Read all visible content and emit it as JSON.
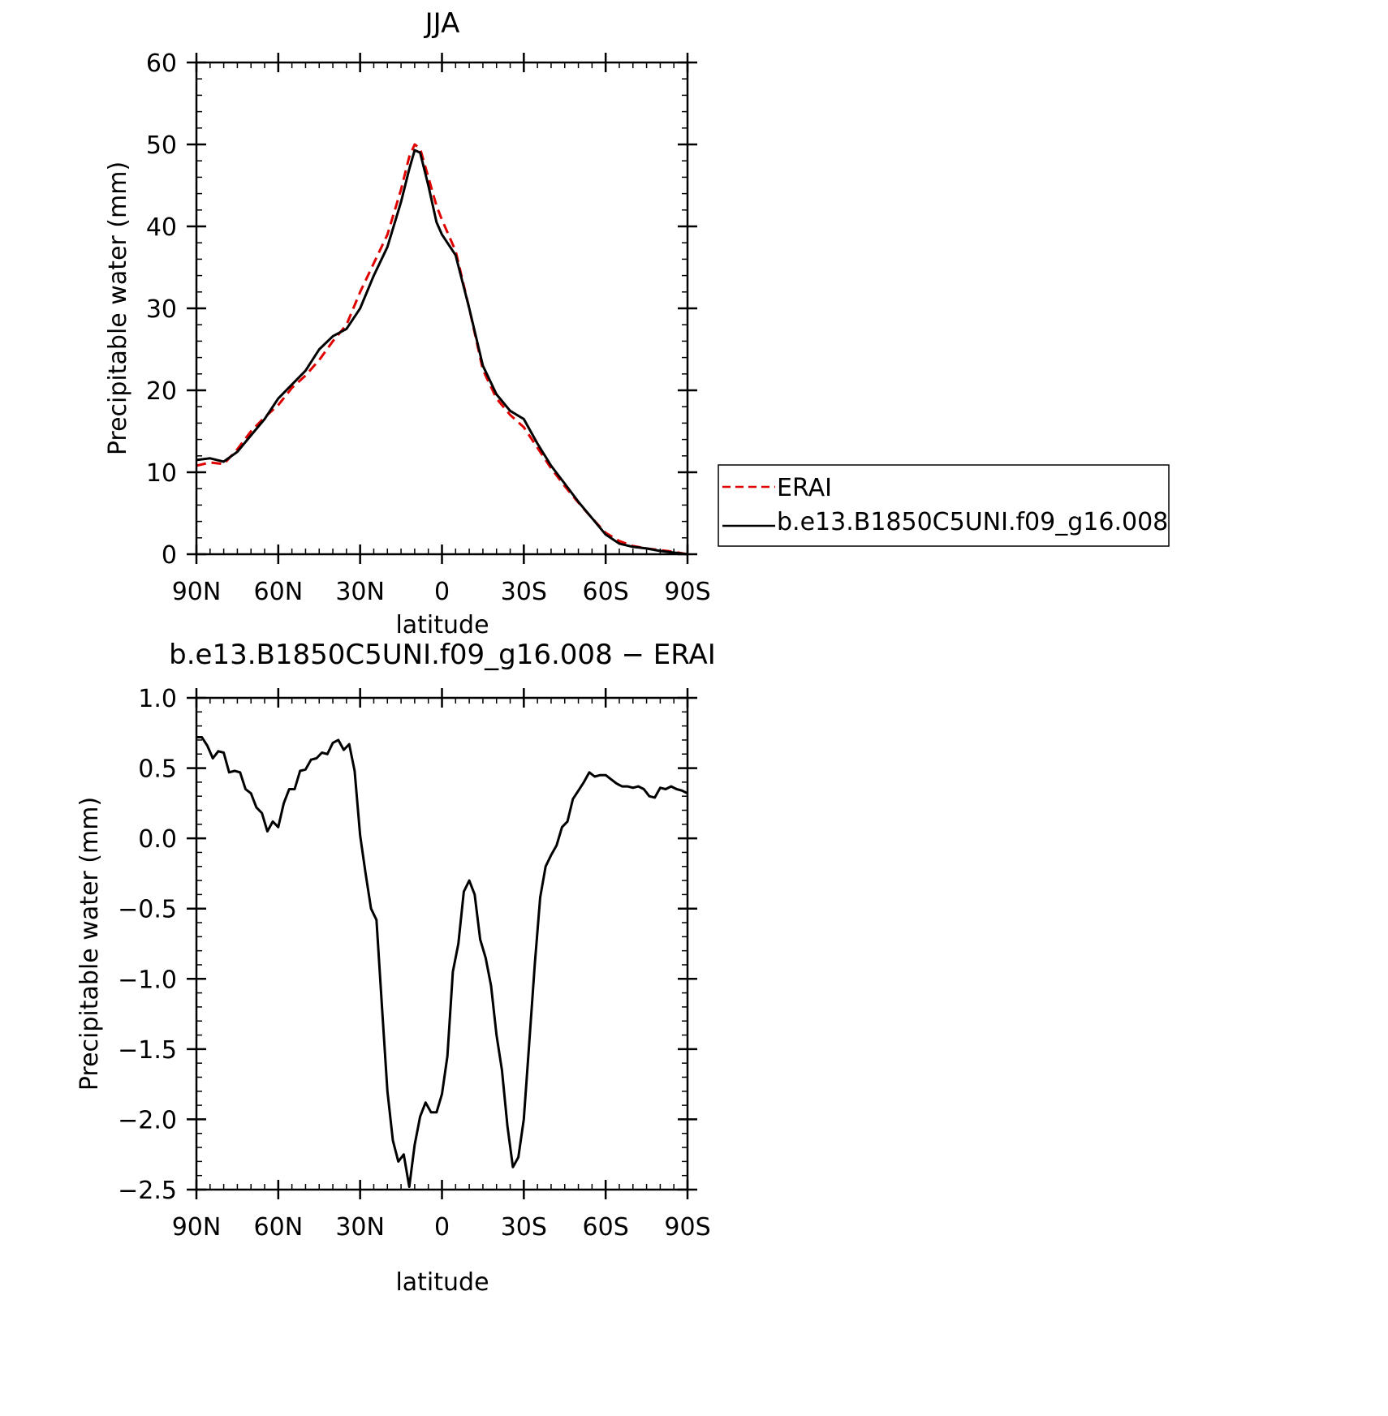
{
  "colors": {
    "series_erai": "#e00000",
    "series_model": "#000000",
    "axis": "#000000"
  },
  "chart_data": [
    {
      "type": "line",
      "title": "JJA",
      "xlabel": "latitude",
      "ylabel": "Precipitable water (mm)",
      "xlim": [
        90,
        -90
      ],
      "ylim": [
        0,
        60
      ],
      "x_ticks": [
        {
          "value": 90,
          "label": "90N"
        },
        {
          "value": 60,
          "label": "60N"
        },
        {
          "value": 30,
          "label": "30N"
        },
        {
          "value": 0,
          "label": "0"
        },
        {
          "value": -30,
          "label": "30S"
        },
        {
          "value": -60,
          "label": "60S"
        },
        {
          "value": -90,
          "label": "90S"
        }
      ],
      "y_ticks": [
        {
          "value": 0,
          "label": "0"
        },
        {
          "value": 10,
          "label": "10"
        },
        {
          "value": 20,
          "label": "20"
        },
        {
          "value": 30,
          "label": "30"
        },
        {
          "value": 40,
          "label": "40"
        },
        {
          "value": 50,
          "label": "50"
        },
        {
          "value": 60,
          "label": "60"
        }
      ],
      "legend": {
        "position": "right",
        "entries": [
          "ERAI",
          "b.e13.B1850C5UNI.f09_g16.008"
        ]
      },
      "series": [
        {
          "name": "ERAI",
          "color": "#e00000",
          "dash": "dashed",
          "x": [
            90,
            85,
            80,
            75,
            70,
            65,
            60,
            55,
            50,
            45,
            40,
            35,
            30,
            25,
            20,
            15,
            12,
            10,
            8,
            5,
            2,
            0,
            -5,
            -10,
            -15,
            -20,
            -25,
            -30,
            -35,
            -40,
            -45,
            -50,
            -55,
            -60,
            -65,
            -70,
            -75,
            -80,
            -85,
            -90
          ],
          "y": [
            10.8,
            11.2,
            11.0,
            12.8,
            15.0,
            16.7,
            18.2,
            20.3,
            21.8,
            23.7,
            26.0,
            28.0,
            32.0,
            35.5,
            39.0,
            44.5,
            48.5,
            50.0,
            49.5,
            46.0,
            42.5,
            40.8,
            37.0,
            30.0,
            22.5,
            19.0,
            17.0,
            15.5,
            13.0,
            10.5,
            8.3,
            6.3,
            4.4,
            2.6,
            1.6,
            1.0,
            0.7,
            0.5,
            0.3,
            0.0
          ]
        },
        {
          "name": "b.e13.B1850C5UNI.f09_g16.008",
          "color": "#000000",
          "dash": "solid",
          "x": [
            90,
            85,
            80,
            75,
            70,
            65,
            60,
            55,
            50,
            45,
            40,
            35,
            30,
            25,
            20,
            15,
            12,
            10,
            8,
            5,
            2,
            0,
            -5,
            -10,
            -15,
            -20,
            -25,
            -30,
            -35,
            -40,
            -45,
            -50,
            -55,
            -60,
            -65,
            -70,
            -75,
            -80,
            -85,
            -90
          ],
          "y": [
            11.5,
            11.7,
            11.3,
            12.5,
            14.5,
            16.5,
            19.0,
            20.7,
            22.4,
            25.0,
            26.6,
            27.5,
            30.0,
            34.0,
            37.5,
            43.0,
            47.0,
            49.3,
            49.0,
            45.0,
            40.5,
            39.0,
            36.5,
            30.0,
            23.0,
            19.5,
            17.5,
            16.5,
            13.5,
            10.8,
            8.6,
            6.4,
            4.4,
            2.4,
            1.3,
            0.9,
            0.7,
            0.4,
            0.2,
            0.0
          ]
        }
      ]
    },
    {
      "type": "line",
      "title": "b.e13.B1850C5UNI.f09_g16.008 − ERAI",
      "xlabel": "latitude",
      "ylabel": "Precipitable water (mm)",
      "xlim": [
        90,
        -90
      ],
      "ylim": [
        -2.5,
        1.0
      ],
      "x_ticks": [
        {
          "value": 90,
          "label": "90N"
        },
        {
          "value": 60,
          "label": "60N"
        },
        {
          "value": 30,
          "label": "30N"
        },
        {
          "value": 0,
          "label": "0"
        },
        {
          "value": -30,
          "label": "30S"
        },
        {
          "value": -60,
          "label": "60S"
        },
        {
          "value": -90,
          "label": "90S"
        }
      ],
      "y_ticks": [
        {
          "value": 1.0,
          "label": "1.0"
        },
        {
          "value": 0.5,
          "label": "0.5"
        },
        {
          "value": 0.0,
          "label": "0.0"
        },
        {
          "value": -0.5,
          "label": "−0.5"
        },
        {
          "value": -1.0,
          "label": "−1.0"
        },
        {
          "value": -1.5,
          "label": "−1.5"
        },
        {
          "value": -2.0,
          "label": "−2.0"
        },
        {
          "value": -2.5,
          "label": "−2.5"
        }
      ],
      "series": [
        {
          "color": "#000000",
          "dash": "solid",
          "x": [
            90,
            88,
            86,
            84,
            82,
            80,
            78,
            76,
            74,
            72,
            70,
            68,
            66,
            64,
            62,
            60,
            58,
            56,
            54,
            52,
            50,
            48,
            46,
            44,
            42,
            40,
            38,
            36,
            34,
            32,
            30,
            28,
            26,
            24,
            22,
            20,
            18,
            16,
            14,
            12,
            10,
            8,
            6,
            4,
            2,
            0,
            -2,
            -4,
            -6,
            -8,
            -10,
            -12,
            -14,
            -16,
            -18,
            -20,
            -22,
            -24,
            -26,
            -28,
            -30,
            -32,
            -34,
            -36,
            -38,
            -40,
            -42,
            -44,
            -46,
            -48,
            -50,
            -52,
            -54,
            -56,
            -58,
            -60,
            -62,
            -64,
            -66,
            -68,
            -70,
            -72,
            -74,
            -76,
            -78,
            -80,
            -82,
            -84,
            -86,
            -88,
            -90
          ],
          "y": [
            0.72,
            0.72,
            0.66,
            0.57,
            0.62,
            0.61,
            0.47,
            0.48,
            0.47,
            0.35,
            0.32,
            0.22,
            0.18,
            0.05,
            0.12,
            0.08,
            0.25,
            0.35,
            0.35,
            0.48,
            0.49,
            0.56,
            0.57,
            0.61,
            0.6,
            0.68,
            0.7,
            0.63,
            0.67,
            0.48,
            0.02,
            -0.25,
            -0.5,
            -0.58,
            -1.2,
            -1.8,
            -2.15,
            -2.3,
            -2.25,
            -2.48,
            -2.18,
            -1.98,
            -1.88,
            -1.95,
            -1.95,
            -1.82,
            -1.55,
            -0.95,
            -0.75,
            -0.38,
            -0.3,
            -0.4,
            -0.72,
            -0.85,
            -1.05,
            -1.4,
            -1.65,
            -2.05,
            -2.34,
            -2.27,
            -2.0,
            -1.45,
            -0.9,
            -0.42,
            -0.2,
            -0.12,
            -0.05,
            0.08,
            0.12,
            0.28,
            0.34,
            0.4,
            0.47,
            0.44,
            0.45,
            0.45,
            0.42,
            0.39,
            0.37,
            0.37,
            0.36,
            0.37,
            0.35,
            0.3,
            0.29,
            0.36,
            0.35,
            0.37,
            0.35,
            0.34,
            0.32
          ]
        }
      ]
    }
  ]
}
